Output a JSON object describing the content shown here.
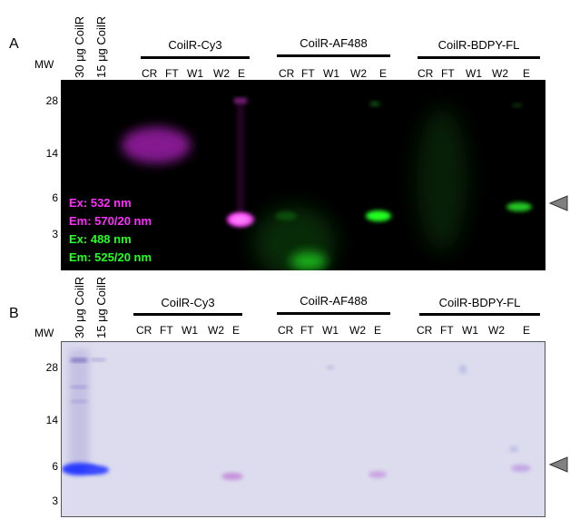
{
  "panel_a": {
    "label": "A",
    "mw_label": "MW",
    "mw_ticks": [
      "28",
      "14",
      "6",
      "3"
    ],
    "std_lanes": [
      "30 μg CoilR",
      "15 μg CoilR"
    ],
    "groups": [
      {
        "name": "CoilR-Cy3",
        "lanes": [
          "CR",
          "FT",
          "W1",
          "W2",
          "E"
        ]
      },
      {
        "name": "CoilR-AF488",
        "lanes": [
          "CR",
          "FT",
          "W1",
          "W2",
          "E"
        ]
      },
      {
        "name": "CoilR-BDPY-FL",
        "lanes": [
          "CR",
          "FT",
          "W1",
          "W2",
          "E"
        ]
      }
    ],
    "legend": [
      {
        "text": "Ex: 532 nm",
        "color": "#ff2dff"
      },
      {
        "text": "Em: 570/20 nm",
        "color": "#ff2dff"
      },
      {
        "text": "Ex: 488 nm",
        "color": "#22ff22"
      },
      {
        "text": "Em: 525/20 nm",
        "color": "#22ff22"
      }
    ]
  },
  "panel_b": {
    "label": "B",
    "mw_label": "MW",
    "mw_ticks": [
      "28",
      "14",
      "6",
      "3"
    ],
    "std_lanes": [
      "30 μg CoilR",
      "15 μg CoilR"
    ],
    "groups": [
      {
        "name": "CoilR-Cy3",
        "lanes": [
          "CR",
          "FT",
          "W1",
          "W2",
          "E"
        ]
      },
      {
        "name": "CoilR-AF488",
        "lanes": [
          "CR",
          "FT",
          "W1",
          "W2",
          "E"
        ]
      },
      {
        "name": "CoilR-BDPY-FL",
        "lanes": [
          "CR",
          "FT",
          "W1",
          "W2",
          "E"
        ]
      }
    ]
  },
  "colors": {
    "cy3": "#ff2dff",
    "fluorescein": "#22ff22",
    "coomassie": "#2a3cff",
    "gel_b_background": "#dcdcee",
    "arrowhead": "#808080"
  }
}
